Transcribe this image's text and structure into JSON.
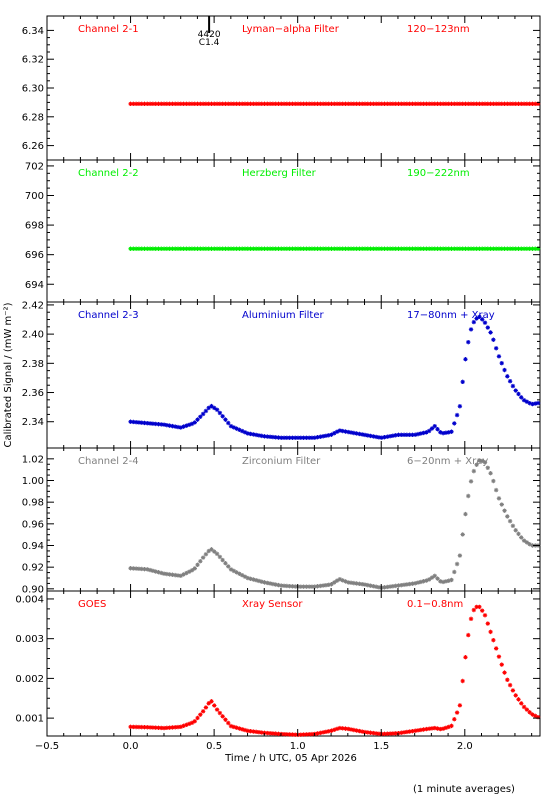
{
  "figure": {
    "ylabel": "Calibrated Signal / (mW m⁻²)",
    "xlabel": "Time / h UTC, 05 Apr 2026",
    "footnote": "(1 minute averages)",
    "marker": {
      "top": "4420",
      "bottom": "C1.4",
      "x": 0.47
    }
  },
  "colors": {
    "red": "#ff0000",
    "green": "#00ee00",
    "blue": "#0000cc",
    "gray": "#808080",
    "axis": "#000000"
  },
  "x_axis": {
    "xlim": [
      -0.5,
      2.45
    ],
    "ticks": [
      -0.5,
      0.0,
      0.5,
      1.0,
      1.5,
      2.0
    ],
    "tick_labels": [
      "−0.5",
      "0.0",
      "0.5",
      "1.0",
      "1.5",
      "2.0"
    ],
    "minor_step": 0.1
  },
  "chart_data": [
    {
      "type": "scatter",
      "panel": "Channel 2-1",
      "labels": [
        "Channel 2-1",
        "Lyman−alpha Filter",
        "120−123nm"
      ],
      "color": "red",
      "ylim": [
        6.25,
        6.35
      ],
      "yticks": [
        6.26,
        6.28,
        6.3,
        6.32,
        6.34
      ],
      "ytick_labels": [
        "6.26",
        "6.28",
        "6.30",
        "6.32",
        "6.34"
      ],
      "series": {
        "x": [
          0.0,
          2.45
        ],
        "y": [
          6.289,
          6.289
        ]
      }
    },
    {
      "type": "scatter",
      "panel": "Channel 2-2",
      "labels": [
        "Channel 2-2",
        "Herzberg Filter",
        "190−222nm"
      ],
      "color": "green",
      "ylim": [
        692.8,
        702.4
      ],
      "yticks": [
        694,
        696,
        698,
        700,
        702
      ],
      "ytick_labels": [
        "694",
        "696",
        "698",
        "700",
        "702"
      ],
      "series": {
        "x": [
          0.0,
          2.45
        ],
        "y": [
          696.4,
          696.4
        ]
      }
    },
    {
      "type": "scatter",
      "panel": "Channel 2-3",
      "labels": [
        "Channel 2-3",
        "Aluminium Filter",
        "17−80nm + Xray"
      ],
      "color": "blue",
      "ylim": [
        2.322,
        2.422
      ],
      "yticks": [
        2.34,
        2.36,
        2.38,
        2.4,
        2.42
      ],
      "ytick_labels": [
        "2.34",
        "2.36",
        "2.38",
        "2.40",
        "2.42"
      ],
      "series": {
        "x": [
          0.0,
          0.1,
          0.2,
          0.3,
          0.38,
          0.44,
          0.48,
          0.52,
          0.6,
          0.7,
          0.8,
          0.9,
          1.0,
          1.1,
          1.2,
          1.25,
          1.3,
          1.4,
          1.5,
          1.6,
          1.7,
          1.78,
          1.82,
          1.86,
          1.92,
          1.97,
          2.0,
          2.03,
          2.06,
          2.09,
          2.12,
          2.16,
          2.2,
          2.25,
          2.3,
          2.35,
          2.4,
          2.45
        ],
        "y": [
          2.34,
          2.339,
          2.338,
          2.336,
          2.339,
          2.346,
          2.351,
          2.348,
          2.337,
          2.332,
          2.33,
          2.329,
          2.329,
          2.329,
          2.331,
          2.334,
          2.333,
          2.331,
          2.329,
          2.331,
          2.331,
          2.333,
          2.337,
          2.332,
          2.333,
          2.35,
          2.38,
          2.401,
          2.41,
          2.412,
          2.408,
          2.4,
          2.386,
          2.372,
          2.362,
          2.355,
          2.352,
          2.353
        ]
      }
    },
    {
      "type": "scatter",
      "panel": "Channel 2-4",
      "labels": [
        "Channel 2-4",
        "Zirconium Filter",
        "6−20nm + Xray"
      ],
      "color": "gray",
      "ylim": [
        0.898,
        1.03
      ],
      "yticks": [
        0.9,
        0.92,
        0.94,
        0.96,
        0.98,
        1.0,
        1.02
      ],
      "ytick_labels": [
        "0.90",
        "0.92",
        "0.94",
        "0.96",
        "0.98",
        "1.00",
        "1.02"
      ],
      "series": {
        "x": [
          0.0,
          0.1,
          0.2,
          0.3,
          0.38,
          0.44,
          0.48,
          0.52,
          0.6,
          0.7,
          0.8,
          0.9,
          1.0,
          1.1,
          1.2,
          1.25,
          1.3,
          1.4,
          1.5,
          1.6,
          1.7,
          1.78,
          1.82,
          1.86,
          1.92,
          1.97,
          2.0,
          2.03,
          2.06,
          2.09,
          2.12,
          2.16,
          2.2,
          2.25,
          2.3,
          2.35,
          2.4,
          2.45
        ],
        "y": [
          0.919,
          0.918,
          0.914,
          0.912,
          0.918,
          0.93,
          0.937,
          0.932,
          0.918,
          0.91,
          0.906,
          0.903,
          0.902,
          0.902,
          0.904,
          0.909,
          0.906,
          0.904,
          0.901,
          0.903,
          0.905,
          0.908,
          0.912,
          0.906,
          0.908,
          0.93,
          0.965,
          0.995,
          1.012,
          1.019,
          1.017,
          1.005,
          0.985,
          0.968,
          0.955,
          0.945,
          0.94,
          0.94
        ]
      }
    },
    {
      "type": "scatter",
      "panel": "GOES",
      "labels": [
        "GOES",
        "Xray Sensor",
        "0.1−0.8nm"
      ],
      "color": "red",
      "ylim": [
        0.00055,
        0.0042
      ],
      "yticks": [
        0.001,
        0.002,
        0.003,
        0.004
      ],
      "ytick_labels": [
        "0.001",
        "0.002",
        "0.003",
        "0.004"
      ],
      "series": {
        "x": [
          0.0,
          0.1,
          0.2,
          0.3,
          0.38,
          0.44,
          0.48,
          0.52,
          0.6,
          0.7,
          0.8,
          0.9,
          1.0,
          1.1,
          1.2,
          1.25,
          1.3,
          1.4,
          1.5,
          1.6,
          1.7,
          1.78,
          1.82,
          1.86,
          1.92,
          1.97,
          2.0,
          2.03,
          2.06,
          2.09,
          2.12,
          2.16,
          2.2,
          2.25,
          2.3,
          2.35,
          2.4,
          2.45
        ],
        "y": [
          0.00078,
          0.00077,
          0.00075,
          0.00078,
          0.0009,
          0.0012,
          0.00145,
          0.0012,
          0.0008,
          0.00068,
          0.00063,
          0.0006,
          0.00058,
          0.0006,
          0.00068,
          0.00075,
          0.00073,
          0.00065,
          0.0006,
          0.00062,
          0.00068,
          0.00073,
          0.00075,
          0.00072,
          0.0008,
          0.0013,
          0.0024,
          0.0034,
          0.0038,
          0.0038,
          0.0036,
          0.0031,
          0.0026,
          0.002,
          0.0016,
          0.0013,
          0.0011,
          0.001
        ]
      }
    }
  ]
}
